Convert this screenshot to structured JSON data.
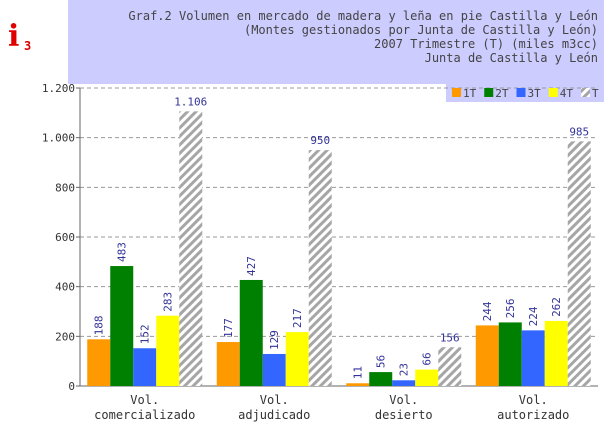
{
  "icon": {
    "letter": "i",
    "sub": "3"
  },
  "chart_data": {
    "type": "bar",
    "title": [
      "Graf.2 Volumen en mercado de madera y leña en pie Castilla y León",
      "(Montes gestionados por Junta de Castilla y León)",
      "2007 Trimestre (T) (miles m3cc)",
      "Junta de Castilla y León"
    ],
    "categories": [
      [
        "Vol.",
        "comercializado"
      ],
      [
        "Vol.",
        "adjudicado"
      ],
      [
        "Vol.",
        "desierto"
      ],
      [
        "Vol.",
        "autorizado"
      ]
    ],
    "series": [
      {
        "name": "1T",
        "color": "#ff9900",
        "values": [
          188,
          177,
          11,
          244
        ]
      },
      {
        "name": "2T",
        "color": "#008000",
        "values": [
          483,
          427,
          56,
          256
        ]
      },
      {
        "name": "3T",
        "color": "#3366ff",
        "values": [
          152,
          129,
          23,
          224
        ]
      },
      {
        "name": "4T",
        "color": "#ffff00",
        "values": [
          283,
          217,
          66,
          262
        ]
      },
      {
        "name": "T",
        "color": "#a6a6a6",
        "pattern": "hatch",
        "values": [
          1106,
          950,
          156,
          985
        ],
        "value_labels": [
          "1.106",
          "950",
          "156",
          "985"
        ]
      }
    ],
    "ylim": [
      0,
      1200
    ],
    "yticks": [
      0,
      200,
      400,
      600,
      800,
      {
        "value": 1000,
        "label": "1.000"
      },
      {
        "value": 1200,
        "label": "1.200"
      }
    ],
    "grid": true,
    "legend": "top-right"
  }
}
